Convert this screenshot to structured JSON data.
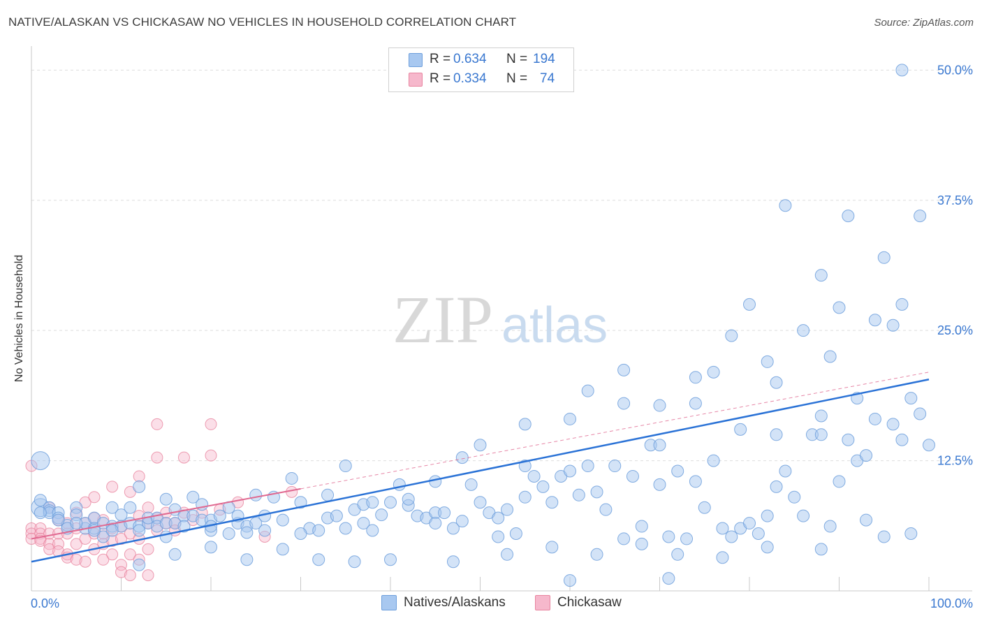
{
  "title": "NATIVE/ALASKAN VS CHICKASAW NO VEHICLES IN HOUSEHOLD CORRELATION CHART",
  "source": "Source: ZipAtlas.com",
  "watermark": {
    "zip": "ZIP",
    "atlas": "atlas"
  },
  "legend": {
    "r_label": "R =",
    "n_label": "N =",
    "rows": [
      {
        "r": "0.634",
        "n": "194"
      },
      {
        "r": "0.334",
        "n": "74"
      }
    ]
  },
  "colors": {
    "blue_fill": "#a8c8f0",
    "blue_stroke": "#6d9fdc",
    "blue_line": "#2a72d6",
    "pink_fill": "#f6b8cc",
    "pink_stroke": "#e8849f",
    "pink_line": "#e06890",
    "tick_text": "#3a78d0",
    "grid": "#dddddd"
  },
  "chart_data": {
    "type": "scatter",
    "title": "NATIVE/ALASKAN VS CHICKASAW NO VEHICLES IN HOUSEHOLD CORRELATION CHART",
    "xlabel": "",
    "ylabel": "No Vehicles in Household",
    "x_tick_labels": [
      "0.0%",
      "100.0%"
    ],
    "y_tick_labels": [
      "12.5%",
      "25.0%",
      "37.5%",
      "50.0%"
    ],
    "y_ticks": [
      12.5,
      25.0,
      37.5,
      50.0
    ],
    "xlim": [
      0,
      100
    ],
    "ylim": [
      0,
      51.5
    ],
    "grid": true,
    "legend_position": "top-center",
    "series": [
      {
        "name": "Natives/Alaskans",
        "r": 0.634,
        "n": 194,
        "trend": {
          "x": [
            0,
            100
          ],
          "y": [
            2.8,
            20.3
          ]
        },
        "points": [
          [
            1,
            8
          ],
          [
            1,
            8.7
          ],
          [
            1,
            12.5
          ],
          [
            2,
            8
          ],
          [
            2,
            7.7
          ],
          [
            2,
            7.5
          ],
          [
            3,
            7.5
          ],
          [
            3,
            7
          ],
          [
            4,
            6.3
          ],
          [
            4,
            6
          ],
          [
            5,
            8
          ],
          [
            5,
            7.3
          ],
          [
            6,
            6
          ],
          [
            6,
            6.5
          ],
          [
            7,
            7
          ],
          [
            7,
            6
          ],
          [
            8,
            6.5
          ],
          [
            8,
            5.2
          ],
          [
            9,
            8
          ],
          [
            9,
            6.2
          ],
          [
            10,
            7.3
          ],
          [
            10,
            6.2
          ],
          [
            11,
            8
          ],
          [
            11,
            6.5
          ],
          [
            12,
            6.2
          ],
          [
            12,
            5.8
          ],
          [
            13,
            6.5
          ],
          [
            13,
            7
          ],
          [
            14,
            7
          ],
          [
            14,
            6.2
          ],
          [
            15,
            8.8
          ],
          [
            15,
            6.5
          ],
          [
            16,
            7.8
          ],
          [
            16,
            6.5
          ],
          [
            17,
            7.2
          ],
          [
            17,
            6.2
          ],
          [
            18,
            7.2
          ],
          [
            19,
            8.3
          ],
          [
            19,
            6.8
          ],
          [
            20,
            6.8
          ],
          [
            20,
            5.8
          ],
          [
            21,
            7.2
          ],
          [
            22,
            8
          ],
          [
            22,
            5.5
          ],
          [
            23,
            6.5
          ],
          [
            23,
            7.2
          ],
          [
            24,
            6.2
          ],
          [
            25,
            6.5
          ],
          [
            26,
            7.2
          ],
          [
            26,
            5.8
          ],
          [
            27,
            9
          ],
          [
            28,
            6.8
          ],
          [
            29,
            10.8
          ],
          [
            30,
            8.5
          ],
          [
            31,
            6
          ],
          [
            32,
            5.8
          ],
          [
            33,
            7
          ],
          [
            33,
            9.2
          ],
          [
            34,
            7.2
          ],
          [
            35,
            6
          ],
          [
            36,
            7.8
          ],
          [
            37,
            8.3
          ],
          [
            37,
            6.5
          ],
          [
            38,
            8.5
          ],
          [
            39,
            7.3
          ],
          [
            40,
            8.5
          ],
          [
            41,
            10.2
          ],
          [
            42,
            8.2
          ],
          [
            43,
            7.2
          ],
          [
            44,
            7
          ],
          [
            45,
            7.5
          ],
          [
            46,
            7.5
          ],
          [
            47,
            6
          ],
          [
            48,
            6.7
          ],
          [
            49,
            10.2
          ],
          [
            50,
            14
          ],
          [
            51,
            7.5
          ],
          [
            52,
            7
          ],
          [
            53,
            7.8
          ],
          [
            54,
            5.5
          ],
          [
            55,
            9
          ],
          [
            56,
            11
          ],
          [
            57,
            10
          ],
          [
            58,
            8.5
          ],
          [
            59,
            11
          ],
          [
            60,
            11.5
          ],
          [
            61,
            9.2
          ],
          [
            62,
            12
          ],
          [
            63,
            9.5
          ],
          [
            64,
            7.8
          ],
          [
            65,
            12
          ],
          [
            66,
            5
          ],
          [
            67,
            11
          ],
          [
            68,
            6.2
          ],
          [
            69,
            14
          ],
          [
            70,
            10.2
          ],
          [
            71,
            5.2
          ],
          [
            72,
            11.5
          ],
          [
            73,
            5
          ],
          [
            74,
            10.5
          ],
          [
            75,
            8
          ],
          [
            76,
            12.5
          ],
          [
            77,
            6
          ],
          [
            78,
            5.2
          ],
          [
            79,
            6
          ],
          [
            80,
            6.5
          ],
          [
            81,
            5.5
          ],
          [
            82,
            7.2
          ],
          [
            83,
            10
          ],
          [
            84,
            11.5
          ],
          [
            85,
            9
          ],
          [
            86,
            7.2
          ],
          [
            87,
            15
          ],
          [
            88,
            15
          ],
          [
            89,
            6.2
          ],
          [
            90,
            10.5
          ],
          [
            91,
            14.5
          ],
          [
            92,
            12.5
          ],
          [
            93,
            13
          ],
          [
            94,
            16.5
          ],
          [
            95,
            5.2
          ],
          [
            96,
            16
          ],
          [
            97,
            14.5
          ],
          [
            98,
            18.5
          ],
          [
            99,
            17
          ],
          [
            100,
            14
          ],
          [
            1,
            7.5
          ],
          [
            3,
            6.8
          ],
          [
            5,
            6.5
          ],
          [
            7,
            5.8
          ],
          [
            9,
            5.8
          ],
          [
            15,
            5.2
          ],
          [
            20,
            6.2
          ],
          [
            24,
            5.6
          ],
          [
            30,
            5.5
          ],
          [
            38,
            5.8
          ],
          [
            45,
            6.5
          ],
          [
            52,
            5.2
          ],
          [
            58,
            4.2
          ],
          [
            63,
            3.5
          ],
          [
            68,
            4.5
          ],
          [
            72,
            3.5
          ],
          [
            77,
            3.2
          ],
          [
            82,
            4.2
          ],
          [
            88,
            4
          ],
          [
            93,
            6.8
          ],
          [
            98,
            5.5
          ],
          [
            12,
            10
          ],
          [
            18,
            9
          ],
          [
            25,
            9.2
          ],
          [
            35,
            12
          ],
          [
            42,
            8.8
          ],
          [
            48,
            12.8
          ],
          [
            55,
            16
          ],
          [
            62,
            19.2
          ],
          [
            66,
            21.2
          ],
          [
            70,
            17.8
          ],
          [
            74,
            20.5
          ],
          [
            78,
            24.5
          ],
          [
            82,
            22
          ],
          [
            86,
            25
          ],
          [
            90,
            27.2
          ],
          [
            94,
            26
          ],
          [
            97,
            27.5
          ],
          [
            84,
            37
          ],
          [
            91,
            36
          ],
          [
            99,
            36
          ],
          [
            95,
            32
          ],
          [
            88,
            30.3
          ],
          [
            80,
            27.5
          ],
          [
            76,
            21
          ],
          [
            66,
            18
          ],
          [
            60,
            16.5
          ],
          [
            55,
            12
          ],
          [
            50,
            8.5
          ],
          [
            45,
            10.5
          ],
          [
            40,
            3
          ],
          [
            36,
            2.8
          ],
          [
            32,
            3
          ],
          [
            28,
            4
          ],
          [
            24,
            3
          ],
          [
            20,
            4.2
          ],
          [
            16,
            3.5
          ],
          [
            12,
            2.5
          ],
          [
            97,
            50
          ],
          [
            71,
            1.2
          ],
          [
            60,
            1
          ],
          [
            53,
            3.5
          ],
          [
            47,
            2.8
          ],
          [
            70,
            14
          ],
          [
            79,
            15.5
          ],
          [
            88,
            16.8
          ],
          [
            74,
            18
          ],
          [
            83,
            20
          ],
          [
            92,
            18.5
          ],
          [
            96,
            25.5
          ],
          [
            89,
            22.5
          ],
          [
            83,
            15
          ]
        ]
      },
      {
        "name": "Chickasaw",
        "r": 0.334,
        "n": 74,
        "trend": {
          "x": [
            0,
            100
          ],
          "y": [
            5.0,
            21.0
          ]
        },
        "points": [
          [
            0,
            12
          ],
          [
            0,
            6
          ],
          [
            0,
            5.5
          ],
          [
            0,
            5
          ],
          [
            1,
            6
          ],
          [
            1,
            5.5
          ],
          [
            1,
            5
          ],
          [
            1,
            4.8
          ],
          [
            2,
            5.5
          ],
          [
            2,
            4.5
          ],
          [
            2,
            4
          ],
          [
            2,
            8
          ],
          [
            3,
            5.5
          ],
          [
            3,
            4.5
          ],
          [
            3,
            6.8
          ],
          [
            3,
            3.8
          ],
          [
            4,
            5.5
          ],
          [
            4,
            6.5
          ],
          [
            4,
            3.5
          ],
          [
            4,
            3.2
          ],
          [
            5,
            6
          ],
          [
            5,
            4.5
          ],
          [
            5,
            3
          ],
          [
            5,
            7.5
          ],
          [
            6,
            6.5
          ],
          [
            6,
            5
          ],
          [
            6,
            2.8
          ],
          [
            6,
            8.5
          ],
          [
            7,
            7
          ],
          [
            7,
            5.5
          ],
          [
            7,
            4
          ],
          [
            7,
            9
          ],
          [
            8,
            6.8
          ],
          [
            8,
            5.5
          ],
          [
            8,
            4.5
          ],
          [
            8,
            3
          ],
          [
            9,
            6
          ],
          [
            9,
            4.8
          ],
          [
            9,
            3.5
          ],
          [
            9,
            10
          ],
          [
            10,
            6.2
          ],
          [
            10,
            5
          ],
          [
            10,
            2.5
          ],
          [
            10,
            1.8
          ],
          [
            11,
            5.5
          ],
          [
            11,
            9.5
          ],
          [
            11,
            3.5
          ],
          [
            11,
            1.5
          ],
          [
            12,
            11
          ],
          [
            12,
            7.2
          ],
          [
            12,
            5
          ],
          [
            12,
            3
          ],
          [
            13,
            8
          ],
          [
            13,
            6.5
          ],
          [
            13,
            4
          ],
          [
            13,
            1.5
          ],
          [
            14,
            12.8
          ],
          [
            14,
            7
          ],
          [
            14,
            5.8
          ],
          [
            14,
            16
          ],
          [
            15,
            7.5
          ],
          [
            15,
            6.5
          ],
          [
            16,
            6.5
          ],
          [
            16,
            5.8
          ],
          [
            17,
            7.5
          ],
          [
            17,
            12.8
          ],
          [
            18,
            6.8
          ],
          [
            19,
            7.5
          ],
          [
            20,
            16
          ],
          [
            20,
            13
          ],
          [
            21,
            7.8
          ],
          [
            23,
            8.5
          ],
          [
            26,
            5.2
          ],
          [
            29,
            9.5
          ]
        ]
      }
    ]
  }
}
